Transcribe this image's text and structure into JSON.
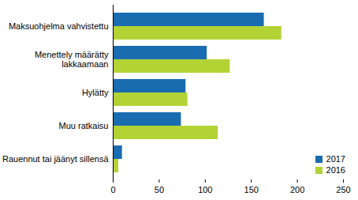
{
  "chart_data": {
    "type": "bar",
    "orientation": "horizontal",
    "categories": [
      "Maksuohjelma vahvistettu",
      "Menettely määrätty lakkaamaan",
      "Hylätty",
      "Muu ratkaisu",
      "Rauennut tai jäänyt sillensä"
    ],
    "series": [
      {
        "name": "2017",
        "color": "#1a6cb0",
        "values": [
          164,
          102,
          79,
          74,
          10
        ]
      },
      {
        "name": "2016",
        "color": "#b3d335",
        "values": [
          183,
          127,
          81,
          114,
          6
        ]
      }
    ],
    "xlim": [
      0,
      250
    ],
    "xticks": [
      0,
      50,
      100,
      150,
      200,
      250
    ],
    "grid": false,
    "legend": "lower right"
  }
}
